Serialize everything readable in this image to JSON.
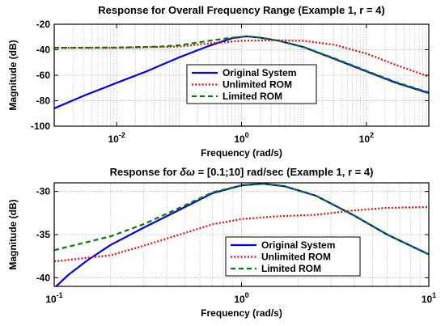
{
  "chart_data": [
    {
      "type": "line",
      "title": "Response for Overall Frequency Range (Example 1, r = 4)",
      "xlabel": "Frequency  (rad/s)",
      "ylabel": "Magnitude (dB)",
      "xscale": "log",
      "xlim": [
        0.001,
        1000
      ],
      "ylim": [
        -100,
        -20
      ],
      "xticks": [
        {
          "value": 0.01,
          "base": "10",
          "exp": "-2"
        },
        {
          "value": 1,
          "base": "10",
          "exp": "0"
        },
        {
          "value": 100,
          "base": "10",
          "exp": "2"
        }
      ],
      "yticks": [
        -100,
        -80,
        -60,
        -40,
        -20
      ],
      "grid": true,
      "legend_position": "center-right",
      "series": [
        {
          "name": "Original System",
          "color": "#0000ff",
          "dash": "solid",
          "points": [
            [
              0.001,
              -86
            ],
            [
              0.003,
              -76
            ],
            [
              0.01,
              -66
            ],
            [
              0.03,
              -57
            ],
            [
              0.1,
              -46
            ],
            [
              0.3,
              -37
            ],
            [
              0.7,
              -31
            ],
            [
              1.2,
              -29.5
            ],
            [
              2,
              -30.5
            ],
            [
              4,
              -33
            ],
            [
              10,
              -38
            ],
            [
              30,
              -47
            ],
            [
              100,
              -57
            ],
            [
              300,
              -66
            ],
            [
              1000,
              -74
            ]
          ]
        },
        {
          "name": "Unlimited ROM",
          "color": "#ff0000",
          "dash": "dot",
          "points": [
            [
              0.001,
              -38.5
            ],
            [
              0.01,
              -38.5
            ],
            [
              0.1,
              -37.5
            ],
            [
              0.3,
              -35
            ],
            [
              1,
              -33
            ],
            [
              3,
              -32.5
            ],
            [
              10,
              -33
            ],
            [
              30,
              -36
            ],
            [
              100,
              -43
            ],
            [
              300,
              -52
            ],
            [
              1000,
              -61
            ]
          ]
        },
        {
          "name": "Limited ROM",
          "color": "#008000",
          "dash": "dash",
          "points": [
            [
              0.001,
              -38.5
            ],
            [
              0.01,
              -38.3
            ],
            [
              0.05,
              -37.5
            ],
            [
              0.1,
              -36.5
            ],
            [
              0.3,
              -33
            ],
            [
              0.7,
              -30.5
            ],
            [
              1.2,
              -29.5
            ],
            [
              2,
              -30.5
            ],
            [
              4,
              -33
            ],
            [
              10,
              -38
            ],
            [
              30,
              -46.5
            ],
            [
              100,
              -56.5
            ],
            [
              300,
              -65.5
            ],
            [
              1000,
              -73.5
            ]
          ]
        }
      ]
    },
    {
      "type": "line",
      "title_prefix": "Response for ",
      "title_symbol": "δω",
      "title_suffix": " = [0.1;10] rad/sec (Example 1, r = 4)",
      "xlabel": "Frequency  (rad/s)",
      "ylabel": "Magnitude (dB)",
      "xscale": "log",
      "xlim": [
        0.1,
        10
      ],
      "ylim": [
        -41,
        -29
      ],
      "xticks": [
        {
          "value": 0.1,
          "base": "10",
          "exp": "-1"
        },
        {
          "value": 1,
          "base": "10",
          "exp": "0"
        },
        {
          "value": 10,
          "base": "10",
          "exp": "1"
        }
      ],
      "yticks": [
        -40,
        -35,
        -30
      ],
      "grid": true,
      "legend_position": "bottom-right",
      "series": [
        {
          "name": "Original System",
          "color": "#0000ff",
          "dash": "solid",
          "points": [
            [
              0.1,
              -41.2
            ],
            [
              0.12,
              -39.6
            ],
            [
              0.15,
              -38
            ],
            [
              0.2,
              -36.2
            ],
            [
              0.3,
              -34.2
            ],
            [
              0.5,
              -31.8
            ],
            [
              0.7,
              -30.2
            ],
            [
              1,
              -29.3
            ],
            [
              1.3,
              -29.1
            ],
            [
              1.7,
              -29.4
            ],
            [
              2.5,
              -30.5
            ],
            [
              4,
              -32.8
            ],
            [
              6,
              -35
            ],
            [
              10,
              -37.3
            ]
          ]
        },
        {
          "name": "Unlimited ROM",
          "color": "#ff0000",
          "dash": "dot",
          "points": [
            [
              0.1,
              -38.1
            ],
            [
              0.2,
              -37.4
            ],
            [
              0.3,
              -36.3
            ],
            [
              0.5,
              -34.8
            ],
            [
              0.7,
              -33.8
            ],
            [
              1,
              -33.2
            ],
            [
              1.5,
              -32.9
            ],
            [
              2.5,
              -32.7
            ],
            [
              4,
              -32.2
            ],
            [
              6,
              -31.9
            ],
            [
              10,
              -31.8
            ]
          ]
        },
        {
          "name": "Limited ROM",
          "color": "#008000",
          "dash": "dash",
          "points": [
            [
              0.1,
              -36.8
            ],
            [
              0.13,
              -36.2
            ],
            [
              0.2,
              -35.2
            ],
            [
              0.3,
              -33.8
            ],
            [
              0.5,
              -31.6
            ],
            [
              0.7,
              -30.1
            ],
            [
              1,
              -29.3
            ],
            [
              1.3,
              -29.1
            ],
            [
              1.7,
              -29.4
            ],
            [
              2.5,
              -30.5
            ],
            [
              4,
              -32.8
            ],
            [
              6,
              -35
            ],
            [
              10,
              -37.3
            ]
          ]
        }
      ]
    }
  ]
}
